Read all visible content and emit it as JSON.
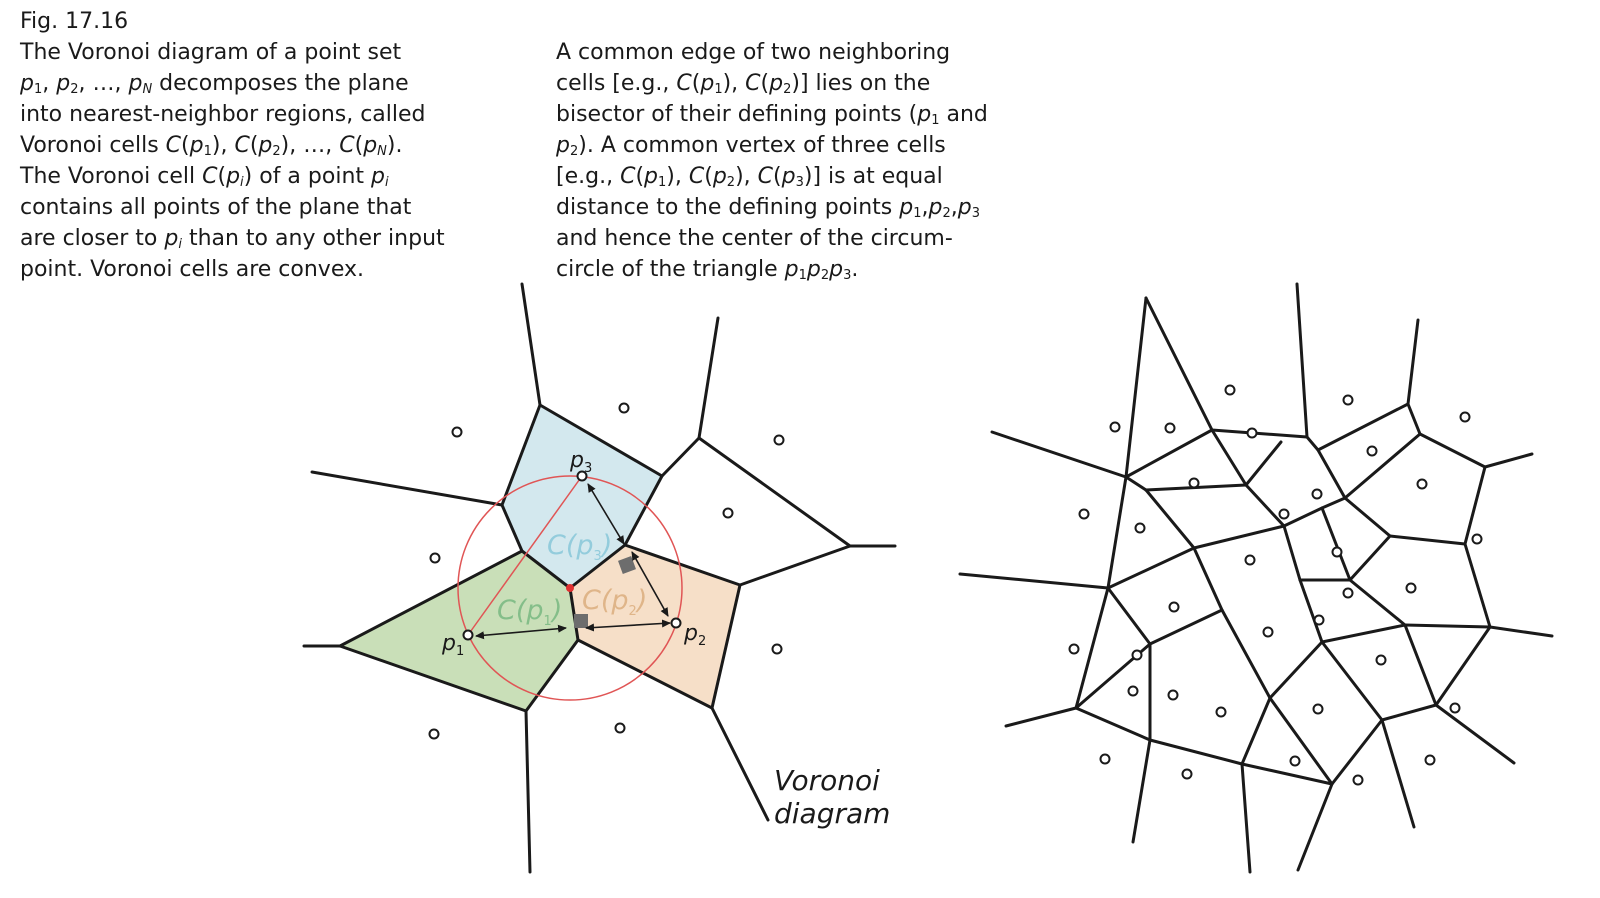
{
  "figure": {
    "label": "Fig. 17.16",
    "diagram_label_line1": "Voronoi",
    "diagram_label_line2": "diagram"
  },
  "caption_left": {
    "l1": "The Voronoi diagram of a point set",
    "l2": {
      "a": "p",
      "a_sub": "1",
      "b": ", ",
      "c": "p",
      "c_sub": "2",
      "d": ", …, ",
      "e": "p",
      "e_sub": "N",
      "f": " decomposes the plane"
    },
    "l3": "into nearest-neighbor regions, called",
    "l4": {
      "a": "Voronoi cells ",
      "b": "C",
      "c": "(",
      "d": "p",
      "d_sub": "1",
      "e": "), ",
      "f": "C",
      "g": "(",
      "h": "p",
      "h_sub": "2",
      "i": "), …, ",
      "j": "C",
      "k": "(",
      "l": "p",
      "l_sub": "N",
      "m": ")."
    },
    "l5": {
      "a": "The Voronoi cell ",
      "b": "C",
      "c": "(",
      "d": "p",
      "d_sub": "i",
      "e": ") of a point ",
      "f": "p",
      "f_sub": "i"
    },
    "l6": "contains all points of the plane that",
    "l7": {
      "a": "are closer to ",
      "b": "p",
      "b_sub": "i",
      "c": " than to any other input"
    },
    "l8": "point. Voronoi cells are convex."
  },
  "caption_right": {
    "l1": "A common edge of two neighboring",
    "l2": {
      "a": "cells [e.g., ",
      "b": "C",
      "c": "(",
      "d": "p",
      "d_sub": "1",
      "e": "), ",
      "f": "C",
      "g": "(",
      "h": "p",
      "h_sub": "2",
      "i": ")] lies on the"
    },
    "l3": {
      "a": "bisector of their defining points (",
      "b": "p",
      "b_sub": "1",
      "c": " and"
    },
    "l4": {
      "a": "p",
      "a_sub": "2",
      "b": "). A common vertex of three cells"
    },
    "l5": {
      "a": "[e.g., ",
      "b": "C",
      "c": "(",
      "d": "p",
      "d_sub": "1",
      "e": "), ",
      "f": "C",
      "g": "(",
      "h": "p",
      "h_sub": "2",
      "i": "), ",
      "j": "C",
      "k": "(",
      "l": "p",
      "l_sub": "3",
      "m": ")] is at equal"
    },
    "l6": {
      "a": "distance to the defining points ",
      "b": "p",
      "b_sub": "1",
      "c": ",",
      "d": "p",
      "d_sub": "2",
      "e": ",",
      "f": "p",
      "f_sub": "3"
    },
    "l7": "and hence the center of the circum-",
    "l8": {
      "a": "circle of the triangle ",
      "b": "p",
      "b_sub": "1",
      "c": "p",
      "c_sub": "2",
      "d": "p",
      "d_sub": "3",
      "e": "."
    }
  },
  "left_diagram": {
    "cells": [
      {
        "name": "cell-p1",
        "label": "C(p",
        "label_sub": "1",
        "label_close": ")",
        "color": "#c9dfb8",
        "label_color": "#6db37a"
      },
      {
        "name": "cell-p2",
        "label": "C(p",
        "label_sub": "2",
        "label_close": ")",
        "color": "#f6dfc8",
        "label_color": "#d8a774"
      },
      {
        "name": "cell-p3",
        "label": "C(p",
        "label_sub": "3",
        "label_close": ")",
        "color": "#d3e8ee",
        "label_color": "#7ec3d6"
      }
    ],
    "points": [
      {
        "name": "p1",
        "label": "p",
        "sub": "1"
      },
      {
        "name": "p2",
        "label": "p",
        "sub": "2"
      },
      {
        "name": "p3",
        "label": "p",
        "sub": "3"
      }
    ],
    "circumcircle_color": "#e05555",
    "vertex_color": "#e03030",
    "edge_color": "#1a1a1a"
  },
  "right_diagram": {
    "edge_color": "#1a1a1a"
  }
}
